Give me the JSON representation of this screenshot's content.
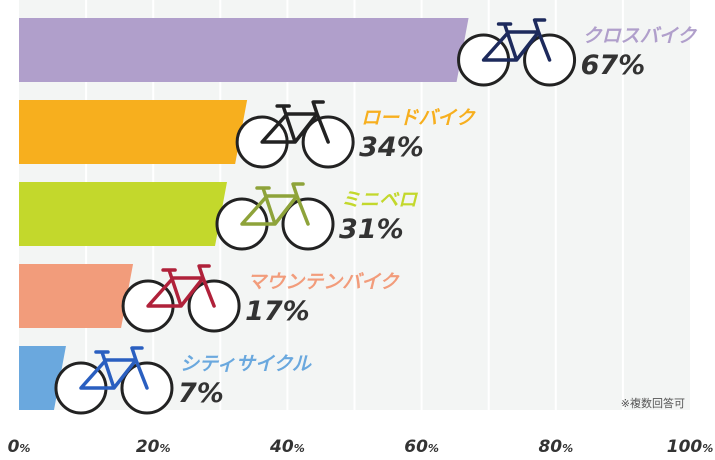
{
  "chart_data": {
    "type": "bar",
    "orientation": "horizontal",
    "categories": [
      "クロスバイク",
      "ロードバイク",
      "ミニベロ",
      "マウンテンバイク",
      "シティサイクル"
    ],
    "values": [
      67,
      34,
      31,
      17,
      7
    ],
    "value_labels": [
      "67%",
      "34%",
      "31%",
      "17%",
      "7%"
    ],
    "colors": [
      "#b09fcb",
      "#f7af1e",
      "#c3d82c",
      "#f29c7b",
      "#6aa8de"
    ],
    "xlim": [
      0,
      100
    ],
    "xticks": [
      0,
      20,
      40,
      60,
      80,
      100
    ],
    "xtick_labels": [
      "0",
      "20",
      "40",
      "60",
      "80",
      "100"
    ],
    "tick_unit": "%",
    "grid": true,
    "note": "※複数回答可",
    "icons": [
      "cross-bike",
      "road-bike",
      "mini-velo",
      "mountain-bike",
      "city-cycle"
    ]
  }
}
